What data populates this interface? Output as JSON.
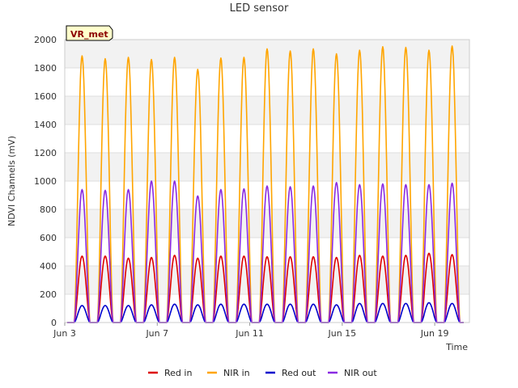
{
  "chart_data": {
    "type": "line",
    "title": "LED sensor",
    "xlabel": "Time",
    "ylabel": "NDVI Channels (mV)",
    "site_badge": "VR_met",
    "ylim": [
      0,
      2000
    ],
    "yticks": [
      0,
      200,
      400,
      600,
      800,
      1000,
      1200,
      1400,
      1600,
      1800,
      2000
    ],
    "xlim": [
      3,
      20.5
    ],
    "xticks": [
      {
        "day": 3,
        "label": "Jun 3"
      },
      {
        "day": 7,
        "label": "Jun 7"
      },
      {
        "day": 11,
        "label": "Jun 11"
      },
      {
        "day": 15,
        "label": "Jun 15"
      },
      {
        "day": 19,
        "label": "Jun 19"
      }
    ],
    "grid": true,
    "legend_position": "bottom",
    "day_center_days": [
      3.75,
      4.75,
      5.75,
      6.75,
      7.75,
      8.75,
      9.75,
      10.75,
      11.75,
      12.75,
      13.75,
      14.75,
      15.75,
      16.75,
      17.75,
      18.75,
      19.75
    ],
    "series": [
      {
        "name": "Red in",
        "color": "#dd0000",
        "daily_peaks": [
          470,
          470,
          455,
          460,
          475,
          455,
          470,
          470,
          465,
          465,
          465,
          460,
          475,
          470,
          475,
          490,
          480
        ]
      },
      {
        "name": "NIR in",
        "color": "#ffa500",
        "daily_peaks": [
          1885,
          1865,
          1875,
          1860,
          1875,
          1790,
          1870,
          1875,
          1935,
          1920,
          1935,
          1900,
          1925,
          1950,
          1945,
          1925,
          1955
        ]
      },
      {
        "name": "Red out",
        "color": "#0000cc",
        "daily_peaks": [
          120,
          120,
          120,
          125,
          130,
          125,
          130,
          130,
          130,
          130,
          130,
          125,
          135,
          135,
          135,
          140,
          135
        ]
      },
      {
        "name": "NIR out",
        "color": "#8a2be2",
        "daily_peaks": [
          940,
          935,
          940,
          1000,
          1000,
          895,
          940,
          945,
          965,
          960,
          965,
          990,
          975,
          980,
          975,
          975,
          985
        ]
      }
    ]
  }
}
